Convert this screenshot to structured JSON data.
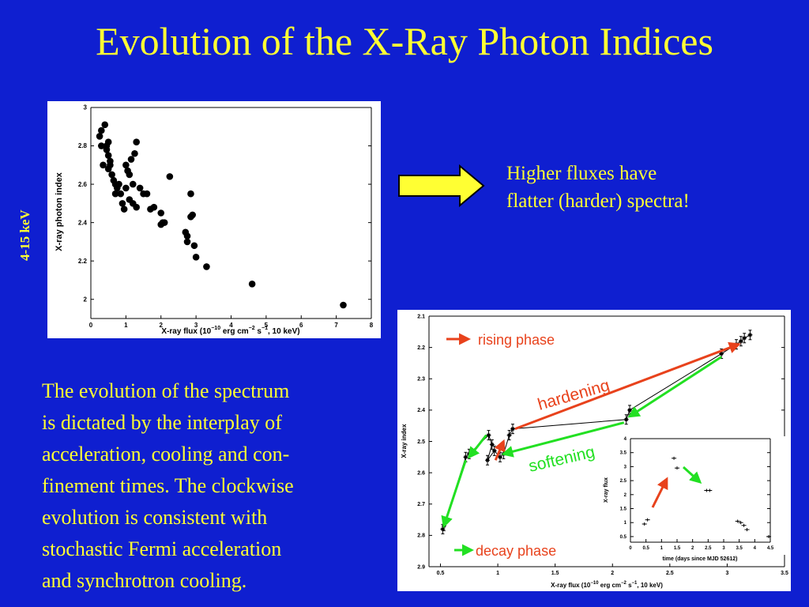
{
  "slide": {
    "title": "Evolution of the X-Ray Photon Indices",
    "side_label": "4-15 keV",
    "note_line1": "Higher fluxes have",
    "note_line2": "flatter (harder) spectra!",
    "body_lines": [
      "The evolution of the spectrum",
      "is dictated by the interplay of",
      "acceleration, cooling and con-",
      "finement times. The clockwise",
      "evolution is consistent with",
      "stochastic Fermi acceleration",
      "and synchrotron cooling."
    ]
  },
  "colors": {
    "background": "#0f1fd0",
    "text": "#ffff33",
    "arrow_fill": "#ffff33",
    "red": "#e8421c",
    "green": "#22e022"
  },
  "chart_data": [
    {
      "type": "scatter",
      "xlabel_parts": {
        "pre": "X-ray flux (10",
        "exp1": "−10",
        "mid1": " erg cm",
        "exp2": "−2",
        "mid2": " s",
        "exp3": "−1",
        "post": ", 10 keV)"
      },
      "ylabel": "X-ray photon index",
      "xlim": [
        0,
        8
      ],
      "ylim": [
        1.9,
        3.0
      ],
      "xticks": [
        "0",
        "1",
        "2",
        "3",
        "4",
        "5",
        "6",
        "7",
        "8"
      ],
      "yticks": [
        "2",
        "2.2",
        "2.4",
        "2.6",
        "2.8",
        "3"
      ],
      "points": [
        [
          0.25,
          2.85
        ],
        [
          0.3,
          2.88
        ],
        [
          0.4,
          2.91
        ],
        [
          0.3,
          2.8
        ],
        [
          0.35,
          2.7
        ],
        [
          0.45,
          2.8
        ],
        [
          0.5,
          2.82
        ],
        [
          0.45,
          2.78
        ],
        [
          0.5,
          2.75
        ],
        [
          0.55,
          2.72
        ],
        [
          0.6,
          2.65
        ],
        [
          0.55,
          2.7
        ],
        [
          0.5,
          2.68
        ],
        [
          0.65,
          2.62
        ],
        [
          0.7,
          2.6
        ],
        [
          0.75,
          2.58
        ],
        [
          0.8,
          2.6
        ],
        [
          0.7,
          2.55
        ],
        [
          0.85,
          2.55
        ],
        [
          0.9,
          2.5
        ],
        [
          0.95,
          2.47
        ],
        [
          1.0,
          2.7
        ],
        [
          1.05,
          2.67
        ],
        [
          1.1,
          2.65
        ],
        [
          1.15,
          2.73
        ],
        [
          1.2,
          2.6
        ],
        [
          1.0,
          2.58
        ],
        [
          1.1,
          2.52
        ],
        [
          1.2,
          2.5
        ],
        [
          1.3,
          2.48
        ],
        [
          1.4,
          2.58
        ],
        [
          1.5,
          2.55
        ],
        [
          1.6,
          2.55
        ],
        [
          1.7,
          2.47
        ],
        [
          1.8,
          2.48
        ],
        [
          1.25,
          2.76
        ],
        [
          1.3,
          2.82
        ],
        [
          2.0,
          2.45
        ],
        [
          2.05,
          2.4
        ],
        [
          2.0,
          2.39
        ],
        [
          2.1,
          2.4
        ],
        [
          2.25,
          2.64
        ],
        [
          2.7,
          2.35
        ],
        [
          2.75,
          2.33
        ],
        [
          2.75,
          2.3
        ],
        [
          2.85,
          2.55
        ],
        [
          2.9,
          2.44
        ],
        [
          2.85,
          2.43
        ],
        [
          2.95,
          2.28
        ],
        [
          3.0,
          2.22
        ],
        [
          3.3,
          2.17
        ],
        [
          4.6,
          2.08
        ],
        [
          7.2,
          1.97
        ]
      ]
    },
    {
      "type": "line",
      "xlabel_parts": {
        "pre": "X-ray flux (10",
        "exp1": "−10",
        "mid1": " erg cm",
        "exp2": "−2",
        "mid2": " s",
        "exp3": "−1",
        "post": ", 10 keV)"
      },
      "ylabel": "X-ray index",
      "xlim": [
        0.4,
        3.5
      ],
      "ylim": [
        2.9,
        2.1
      ],
      "xticks": [
        "0.5",
        "1",
        "1.5",
        "2",
        "2.5",
        "3",
        "3.5"
      ],
      "yticks": [
        "2.1",
        "2.2",
        "2.3",
        "2.4",
        "2.5",
        "2.6",
        "2.7",
        "2.8",
        "2.9"
      ],
      "points": [
        [
          0.52,
          2.78
        ],
        [
          0.53,
          2.77
        ],
        [
          0.72,
          2.55
        ],
        [
          0.75,
          2.54
        ],
        [
          0.92,
          2.48
        ],
        [
          0.95,
          2.51
        ],
        [
          0.91,
          2.56
        ],
        [
          0.97,
          2.53
        ],
        [
          1.02,
          2.55
        ],
        [
          1.05,
          2.54
        ],
        [
          1.1,
          2.48
        ],
        [
          1.13,
          2.46
        ],
        [
          2.12,
          2.43
        ],
        [
          2.15,
          2.4
        ],
        [
          2.95,
          2.22
        ],
        [
          3.08,
          2.19
        ],
        [
          3.12,
          2.18
        ],
        [
          3.15,
          2.17
        ],
        [
          3.2,
          2.16
        ]
      ],
      "annotations": {
        "rising": "rising phase",
        "decay": "decay phase",
        "hardening": "hardening",
        "softening": "softening"
      },
      "inset": {
        "type": "scatter",
        "xlabel": "time (days since MJD 52612)",
        "ylabel": "X-ray flux",
        "xlim": [
          0,
          4.5
        ],
        "ylim": [
          0.3,
          4
        ],
        "xticks": [
          "0",
          "0.5",
          "1",
          "1.5",
          "2",
          "2.5",
          "3",
          "3.5",
          "4",
          "4.5"
        ],
        "yticks": [
          "0.5",
          "1",
          "1.5",
          "2",
          "2.5",
          "3",
          "3.5",
          "4"
        ],
        "points": [
          [
            0.45,
            0.95
          ],
          [
            0.55,
            1.1
          ],
          [
            1.4,
            3.3
          ],
          [
            1.5,
            2.95
          ],
          [
            2.45,
            2.15
          ],
          [
            2.55,
            2.15
          ],
          [
            3.45,
            1.05
          ],
          [
            3.55,
            1.0
          ],
          [
            3.65,
            0.9
          ],
          [
            3.75,
            0.75
          ],
          [
            4.45,
            0.5
          ]
        ]
      }
    }
  ]
}
